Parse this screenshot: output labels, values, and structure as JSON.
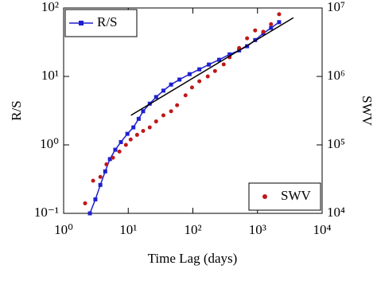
{
  "chart_data": {
    "type": "line",
    "x_label": "Time Lag (days)",
    "y_label": "R/S",
    "y2_label": "SWV",
    "xscale": "log",
    "yscale": "log",
    "y2scale": "log",
    "xlim": [
      1,
      10000
    ],
    "xticks": [
      {
        "value": 1,
        "label": "10⁰"
      },
      {
        "value": 10,
        "label": "10¹"
      },
      {
        "value": 100,
        "label": "10²"
      },
      {
        "value": 1000,
        "label": "10³"
      },
      {
        "value": 10000,
        "label": "10⁴"
      }
    ],
    "ylim": [
      0.1,
      100
    ],
    "yticks": [
      {
        "value": 0.1,
        "label": "10⁻¹"
      },
      {
        "value": 1,
        "label": "10⁰"
      },
      {
        "value": 10,
        "label": "10¹"
      },
      {
        "value": 100,
        "label": "10²"
      }
    ],
    "y2lim": [
      10000,
      10000000
    ],
    "y2ticks": [
      {
        "value": 10000,
        "label": "10⁴"
      },
      {
        "value": 100000,
        "label": "10⁵"
      },
      {
        "value": 1000000,
        "label": "10⁶"
      },
      {
        "value": 10000000,
        "label": "10⁷"
      }
    ],
    "series": [
      {
        "name": "R/S",
        "color": "#1f1fd0",
        "style": "line-square",
        "legend_corner": "upper left",
        "x": [
          2.55,
          3.1,
          3.7,
          4.4,
          5.2,
          6.3,
          7.7,
          9.7,
          12,
          14.5,
          17,
          21.5,
          27,
          35,
          46,
          62,
          89,
          126,
          177,
          255,
          370,
          520,
          690,
          920,
          1230,
          1620,
          2160
        ],
        "values": [
          0.1,
          0.16,
          0.26,
          0.41,
          0.62,
          0.85,
          1.1,
          1.45,
          1.8,
          2.4,
          3.1,
          4.0,
          5.0,
          6.2,
          7.6,
          9.0,
          10.8,
          12.7,
          14.9,
          17.5,
          21,
          24,
          27.6,
          34,
          42.6,
          51,
          62
        ]
      },
      {
        "name": "SWV",
        "color": "#c01818",
        "style": "dots",
        "axis": "y2",
        "legend_corner": "lower right",
        "x": [
          2.15,
          2.86,
          3.7,
          4.6,
          5.8,
          7.3,
          9.2,
          10.9,
          13.7,
          17,
          21.5,
          27,
          35,
          46,
          57,
          77,
          97,
          126,
          170,
          220,
          300,
          370,
          520,
          690,
          920,
          1230,
          1620,
          2160
        ],
        "values": [
          14000,
          30000,
          34000,
          52000,
          65000,
          80000,
          100000,
          120000,
          140000,
          160000,
          180000,
          220000,
          270000,
          310000,
          380000,
          530000,
          690000,
          850000,
          1000000,
          1200000,
          1500000,
          1900000,
          2600000,
          3600000,
          4700000,
          4500000,
          5800000,
          8100000
        ]
      },
      {
        "color": "#000000",
        "style": "plain-line",
        "x": [
          11,
          3600
        ],
        "values": [
          2.7,
          72
        ]
      }
    ]
  }
}
